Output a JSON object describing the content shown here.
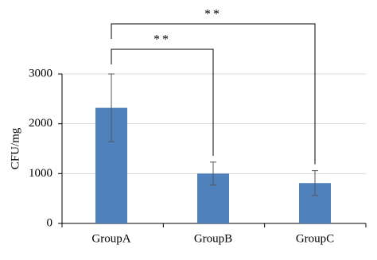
{
  "chart_data": {
    "type": "bar",
    "y_label": "CFU/mg",
    "categories": [
      "GroupA",
      "GroupB",
      "GroupC"
    ],
    "values": [
      2320,
      1000,
      810
    ],
    "errors": [
      680,
      230,
      250
    ],
    "color": "#4f81bd",
    "ylim": [
      0,
      3000
    ],
    "yticks": [
      0,
      1000,
      2000,
      3000
    ],
    "grid": true,
    "annotations": [
      {
        "text": "**",
        "from": 0,
        "to": 1
      },
      {
        "text": "**",
        "from": 0,
        "to": 2
      }
    ]
  }
}
